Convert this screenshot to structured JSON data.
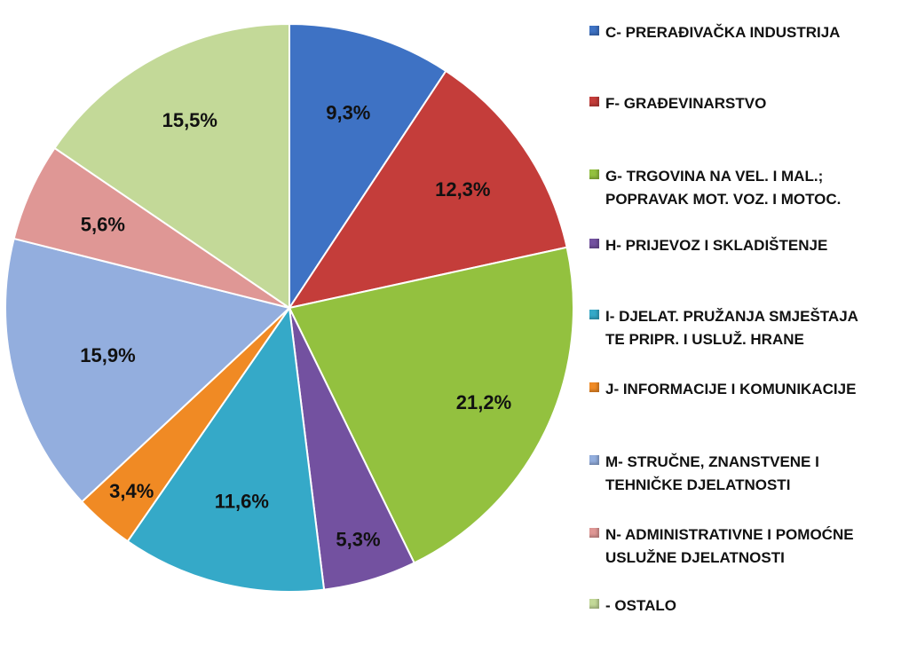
{
  "chart_data": {
    "type": "pie",
    "slices": [
      {
        "label": "9,3%",
        "value": 9.3,
        "color": "#3e72c4",
        "legend": [
          "C- PRERAĐIVAČKA INDUSTRIJA"
        ]
      },
      {
        "label": "12,3%",
        "value": 12.3,
        "color": "#c43d3a",
        "legend": [
          "F- GRAĐEVINARSTVO"
        ]
      },
      {
        "label": "21,2%",
        "value": 21.2,
        "color": "#93c13f",
        "legend": [
          "G- TRGOVINA NA VEL. I MAL.;",
          "POPRAVAK MOT. VOZ. I MOTOC."
        ]
      },
      {
        "label": "5,3%",
        "value": 5.3,
        "color": "#7351a0",
        "legend": [
          "H- PRIJEVOZ I SKLADIŠTENJE"
        ]
      },
      {
        "label": "11,6%",
        "value": 11.6,
        "color": "#35a9c8",
        "legend": [
          "I- DJELAT. PRUŽANJA SMJEŠTAJA",
          "TE PRIPR. I USLUŽ. HRANE"
        ]
      },
      {
        "label": "3,4%",
        "value": 3.4,
        "color": "#f08a24",
        "legend": [
          "J- INFORMACIJE I KOMUNIKACIJE"
        ]
      },
      {
        "label": "15,9%",
        "value": 15.9,
        "color": "#93aede",
        "legend": [
          "M- STRUČNE, ZNANSTVENE I",
          "TEHNIČKE DJELATNOSTI"
        ]
      },
      {
        "label": "5,6%",
        "value": 5.6,
        "color": "#df9795",
        "legend": [
          "N- ADMINISTRATIVNE I POMOĆNE",
          "USLUŽNE DJELATNOSTI"
        ]
      },
      {
        "label": "15,5%",
        "value": 15.5,
        "color": "#c3d998",
        "legend": [
          " - OSTALO"
        ]
      }
    ],
    "legend_position": "right"
  }
}
